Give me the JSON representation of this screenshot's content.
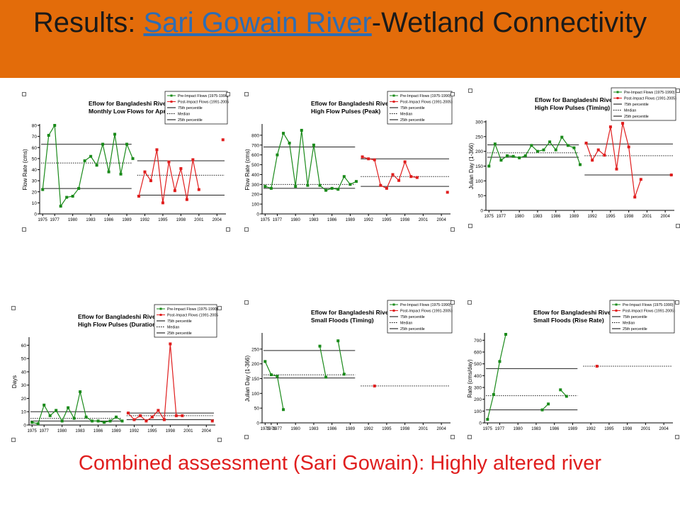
{
  "slide": {
    "title_prefix": "Results: ",
    "title_link": "Sari Gowain River",
    "title_suffix": "-Wetland Connectivity",
    "conclusion": "Combined assessment (Sari Gowain): Highly altered river"
  },
  "colors": {
    "title_bar": "#e36c0a",
    "pre": "#1a8a1a",
    "post": "#e01e1e",
    "link": "#2e6db4",
    "conclusion": "#e01e1e"
  },
  "legend": {
    "pre": "Pre-Impact Flows (1975-1990)",
    "post": "Post-Impact Flows (1991-2005)",
    "p75": "75th percentile",
    "median": "Median",
    "p25": "25th percentile"
  },
  "chart_data": [
    {
      "type": "line",
      "title": "Eflow for Bangladeshi Rivers",
      "subtitle": "Monthly Low Flows for April",
      "ylabel": "Flow Rate (cms)",
      "ylim": [
        0,
        80
      ],
      "yticks": [
        0,
        10,
        20,
        30,
        40,
        50,
        60,
        70,
        80
      ],
      "xticks": [
        "1975",
        "1977",
        "1980",
        "1983",
        "1986",
        "1989",
        "1992",
        "1995",
        "1998",
        "2001",
        "2004"
      ],
      "xlim": [
        1974.5,
        2005.5
      ],
      "series": [
        {
          "name": "Pre-Impact Flows (1975-1990)",
          "x": [
            1975,
            1976,
            1977,
            1978,
            1979,
            1980,
            1981,
            1982,
            1983,
            1984,
            1985,
            1986,
            1987,
            1988,
            1989,
            1990
          ],
          "y": [
            22,
            71,
            80,
            7,
            15,
            16,
            23,
            48,
            52,
            44,
            63,
            38,
            72,
            36,
            63,
            50
          ]
        },
        {
          "name": "Post-Impact Flows (1991-2005)",
          "x": [
            1991,
            1992,
            1993,
            1994,
            1995,
            1996,
            1997,
            1998,
            1999,
            2000,
            2001
          ],
          "y": [
            16,
            38,
            30,
            58,
            10,
            47,
            21,
            41,
            13,
            49,
            22
          ]
        },
        {
          "name": "Post-Impact Flows (1991-2005)",
          "x": [
            2005
          ],
          "y": [
            67
          ]
        }
      ],
      "pre_lines": {
        "p75": 63,
        "median": 46,
        "p25": 23
      },
      "post_lines": {
        "p75": 48,
        "median": 35,
        "p25": 17
      }
    },
    {
      "type": "line",
      "title": "Eflow for Bangladeshi Rivers",
      "subtitle": "High Flow Pulses (Peak)",
      "ylabel": "Flow Rate (cms)",
      "ylim": [
        0,
        900
      ],
      "yticks": [
        0,
        100,
        200,
        300,
        400,
        500,
        600,
        700,
        800
      ],
      "xticks": [
        "1975",
        "1977",
        "1980",
        "1983",
        "1986",
        "1989",
        "1992",
        "1995",
        "1998",
        "2001",
        "2004"
      ],
      "xlim": [
        1974.5,
        2005.5
      ],
      "series": [
        {
          "name": "Pre-Impact Flows (1975-1990)",
          "x": [
            1975,
            1976,
            1977,
            1978,
            1979,
            1980,
            1981,
            1982,
            1983,
            1984,
            1985,
            1986,
            1987,
            1988,
            1989,
            1990
          ],
          "y": [
            280,
            260,
            600,
            820,
            720,
            280,
            850,
            290,
            700,
            290,
            240,
            260,
            250,
            380,
            300,
            330
          ]
        },
        {
          "name": "Post-Impact Flows (1991-2005)",
          "x": [
            1991,
            1992,
            1993,
            1994,
            1995,
            1996,
            1997,
            1998,
            1999,
            2000
          ],
          "y": [
            580,
            560,
            550,
            290,
            260,
            400,
            340,
            530,
            380,
            370
          ]
        },
        {
          "name": "Post-Impact Flows (1991-2005)",
          "x": [
            2005
          ],
          "y": [
            220
          ]
        }
      ],
      "pre_lines": {
        "p75": 680,
        "median": 300,
        "p25": 260
      },
      "post_lines": {
        "p75": 560,
        "median": 380,
        "p25": 280
      }
    },
    {
      "type": "line",
      "title": "Eflow for Bangladeshi Rivers",
      "subtitle": "High Flow Pulses (Timing)",
      "ylabel": "Julian Day (1-366)",
      "ylim": [
        0,
        300
      ],
      "yticks": [
        0,
        50,
        100,
        150,
        200,
        250,
        300
      ],
      "xticks": [
        "1975",
        "1977",
        "1980",
        "1983",
        "1986",
        "1989",
        "1992",
        "1995",
        "1998",
        "2001",
        "2004"
      ],
      "xlim": [
        1974.5,
        2005.5
      ],
      "series": [
        {
          "name": "Pre-Impact Flows (1975-1990)",
          "x": [
            1975,
            1976,
            1977,
            1978,
            1979,
            1980,
            1981,
            1982,
            1983,
            1984,
            1985,
            1986,
            1987,
            1988,
            1989,
            1990
          ],
          "y": [
            150,
            225,
            170,
            185,
            183,
            178,
            185,
            220,
            200,
            205,
            232,
            205,
            248,
            220,
            212,
            155
          ]
        },
        {
          "name": "Post-Impact Flows (1991-2005)",
          "x": [
            1991,
            1992,
            1993,
            1994,
            1995,
            1996,
            1997,
            1998,
            1999,
            2000
          ],
          "y": [
            228,
            170,
            205,
            187,
            283,
            140,
            295,
            215,
            45,
            105
          ]
        },
        {
          "name": "Post-Impact Flows (1991-2005)",
          "x": [
            2005
          ],
          "y": [
            120
          ]
        }
      ],
      "pre_lines": {
        "p75": 222,
        "median": 195,
        "p25": 180
      },
      "post_lines": {
        "p75": 225,
        "median": 185,
        "p25": 120
      }
    },
    {
      "type": "line",
      "title": "Eflow for Bangladeshi Rivers",
      "subtitle": "High Flow Pulses (Duration)",
      "ylabel": "Days",
      "ylim": [
        0,
        65
      ],
      "yticks": [
        0,
        10,
        20,
        30,
        40,
        50,
        60
      ],
      "xticks": [
        "1975",
        "1977",
        "1980",
        "1983",
        "1986",
        "1989",
        "1992",
        "1995",
        "1998",
        "2001",
        "2004"
      ],
      "xlim": [
        1974.5,
        2005.5
      ],
      "series": [
        {
          "name": "Pre-Impact Flows (1975-1990)",
          "x": [
            1975,
            1976,
            1977,
            1978,
            1979,
            1980,
            1981,
            1982,
            1983,
            1984,
            1985,
            1986,
            1987,
            1988,
            1989,
            1990
          ],
          "y": [
            2,
            1,
            15,
            7,
            11,
            3,
            13,
            5,
            25,
            6,
            3,
            3,
            2,
            3,
            6,
            3
          ]
        },
        {
          "name": "Post-Impact Flows (1991-2005)",
          "x": [
            1991,
            1992,
            1993,
            1994,
            1995,
            1996,
            1997,
            1998,
            1999,
            2000
          ],
          "y": [
            9,
            4,
            7,
            3,
            6,
            11,
            4,
            61,
            7,
            7
          ]
        },
        {
          "name": "Post-Impact Flows (1991-2005)",
          "x": [
            2005
          ],
          "y": [
            3
          ]
        }
      ],
      "pre_lines": {
        "p75": 10,
        "median": 5,
        "p25": 3
      },
      "post_lines": {
        "p75": 9,
        "median": 7,
        "p25": 4
      }
    },
    {
      "type": "line",
      "title": "Eflow for Bangladeshi Rivers",
      "subtitle": "Small Floods (Timing)",
      "ylabel": "Julian Day (1-366)",
      "ylim": [
        0,
        300
      ],
      "yticks": [
        0,
        50,
        100,
        150,
        200,
        250
      ],
      "xticks": [
        "1975",
        "1976",
        "1977",
        "1980",
        "1983",
        "1986",
        "1989",
        "1992",
        "1995",
        "1998",
        "2001",
        "2004"
      ],
      "xlim": [
        1974.5,
        2005.5
      ],
      "series": [
        {
          "name": "Pre-Impact Flows (1975-1990)",
          "x": [
            1975,
            1976,
            1977,
            1978
          ],
          "y": [
            208,
            163,
            158,
            45
          ]
        },
        {
          "name": "Pre-Impact Flows (1975-1990)",
          "x": [
            1984,
            1985
          ],
          "y": [
            260,
            155
          ]
        },
        {
          "name": "Pre-Impact Flows (1975-1990)",
          "x": [
            1987,
            1988
          ],
          "y": [
            278,
            165
          ]
        },
        {
          "name": "Post-Impact Flows (1991-2005)",
          "x": [
            1993
          ],
          "y": [
            125
          ]
        }
      ],
      "pre_lines": {
        "p75": 245,
        "median": 163,
        "p25": 152
      },
      "post_lines": {
        "median": 125
      }
    },
    {
      "type": "line",
      "title": "Eflow for Bangladeshi Rivers",
      "subtitle": "Small Floods (Rise Rate)",
      "ylabel": "Rate (cms/day)",
      "ylim": [
        0,
        750
      ],
      "yticks": [
        0,
        100,
        200,
        300,
        400,
        500,
        600,
        700
      ],
      "xticks": [
        "1975",
        "1977",
        "1980",
        "1983",
        "1986",
        "1989",
        "1992",
        "1995",
        "1998",
        "2001",
        "2004"
      ],
      "xlim": [
        1974.5,
        2005.5
      ],
      "series": [
        {
          "name": "Pre-Impact Flows (1975-1990)",
          "x": [
            1975,
            1976,
            1977,
            1978
          ],
          "y": [
            30,
            240,
            520,
            750
          ]
        },
        {
          "name": "Pre-Impact Flows (1975-1990)",
          "x": [
            1984,
            1985
          ],
          "y": [
            110,
            160
          ]
        },
        {
          "name": "Pre-Impact Flows (1975-1990)",
          "x": [
            1987,
            1988
          ],
          "y": [
            280,
            225
          ]
        },
        {
          "name": "Post-Impact Flows (1991-2005)",
          "x": [
            1993
          ],
          "y": [
            480
          ]
        }
      ],
      "pre_lines": {
        "p75": 460,
        "median": 230,
        "p25": 110
      },
      "post_lines": {
        "median": 480
      }
    }
  ]
}
